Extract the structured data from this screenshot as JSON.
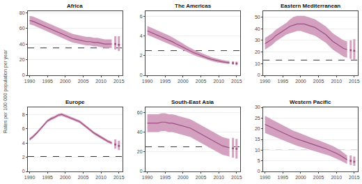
{
  "chart_data": [
    {
      "type": "line",
      "title": "Africa",
      "y_label": "Rates per 100 000 population per year",
      "x": [
        1990,
        1991,
        1992,
        1993,
        1994,
        1995,
        1996,
        1997,
        1998,
        1999,
        2000,
        2001,
        2002,
        2003,
        2004,
        2005,
        2006,
        2007,
        2008,
        2009,
        2010,
        2011,
        2012,
        2013
      ],
      "series": [
        {
          "type": "band",
          "color": "#D4A0C0",
          "lower": [
            65,
            64,
            62,
            60,
            58,
            56,
            54,
            52,
            50,
            48,
            46,
            44,
            42,
            41,
            40,
            39,
            38,
            38,
            37,
            37,
            36,
            35,
            35,
            35
          ],
          "upper": [
            76,
            75,
            73,
            71,
            69,
            67,
            65,
            63,
            61,
            59,
            57,
            55,
            53,
            52,
            51,
            50,
            49,
            49,
            48,
            48,
            47,
            46,
            46,
            46
          ]
        },
        {
          "type": "line",
          "color": "#9B4E7E",
          "values": [
            70,
            69,
            67,
            65,
            63,
            61,
            59,
            57,
            55,
            53,
            51,
            49,
            47,
            46,
            45,
            44,
            43,
            43,
            42,
            42,
            41,
            40,
            40,
            40
          ]
        },
        {
          "type": "range_bar",
          "color": "#D4A0C0",
          "x": [
            2014,
            2015
          ],
          "lower": [
            33,
            31
          ],
          "upper": [
            50,
            50
          ]
        },
        {
          "type": "scatter",
          "color": "#9B4E7E",
          "x": [
            2014,
            2015
          ],
          "values": [
            40,
            39
          ]
        }
      ],
      "reference_line": {
        "value": 35,
        "line_style": "dashed",
        "color": "#333333"
      },
      "xlim": [
        1989.5,
        2016
      ],
      "xticks": [
        1990,
        1995,
        2000,
        2005,
        2010,
        2015
      ],
      "ylim": [
        0,
        82
      ],
      "yticks": [
        0,
        20,
        40,
        60,
        80
      ],
      "grid": true
    },
    {
      "type": "line",
      "title": "The Americas",
      "x": [
        1990,
        1991,
        1992,
        1993,
        1994,
        1995,
        1996,
        1997,
        1998,
        1999,
        2000,
        2001,
        2002,
        2003,
        2004,
        2005,
        2006,
        2007,
        2008,
        2009,
        2010,
        2011,
        2012,
        2013
      ],
      "series": [
        {
          "type": "band",
          "color": "#D4A0C0",
          "lower": [
            4.1,
            3.95,
            3.8,
            3.65,
            3.5,
            3.35,
            3.18,
            3.03,
            2.87,
            2.72,
            2.56,
            2.38,
            2.2,
            2.05,
            1.91,
            1.78,
            1.65,
            1.53,
            1.44,
            1.35,
            1.28,
            1.22,
            1.17,
            1.13
          ],
          "upper": [
            5.0,
            4.85,
            4.7,
            4.55,
            4.4,
            4.25,
            4.05,
            3.85,
            3.65,
            3.48,
            3.22,
            2.98,
            2.76,
            2.6,
            2.44,
            2.28,
            2.12,
            1.97,
            1.84,
            1.73,
            1.63,
            1.55,
            1.49,
            1.44
          ]
        },
        {
          "type": "line",
          "color": "#9B4E7E",
          "values": [
            4.5,
            4.35,
            4.2,
            4.05,
            3.9,
            3.75,
            3.55,
            3.4,
            3.2,
            3.05,
            2.85,
            2.65,
            2.45,
            2.3,
            2.15,
            2.0,
            1.85,
            1.72,
            1.62,
            1.52,
            1.44,
            1.37,
            1.32,
            1.28
          ]
        },
        {
          "type": "range_bar",
          "color": "#D4A0C0",
          "x": [
            2014,
            2015
          ],
          "lower": [
            1.08,
            1.02
          ],
          "upper": [
            1.42,
            1.38
          ]
        },
        {
          "type": "scatter",
          "color": "#9B4E7E",
          "x": [
            2014,
            2015
          ],
          "values": [
            1.24,
            1.2
          ]
        }
      ],
      "reference_line": {
        "value": 2.5,
        "line_style": "dashed",
        "color": "#333333"
      },
      "xlim": [
        1989.5,
        2016
      ],
      "xticks": [
        1990,
        1995,
        2000,
        2005,
        2010,
        2015
      ],
      "ylim": [
        0,
        6.5
      ],
      "yticks": [
        0,
        2,
        4,
        6
      ],
      "grid": true
    },
    {
      "type": "line",
      "title": "Eastern Mediterranean",
      "x": [
        1990,
        1991,
        1992,
        1993,
        1994,
        1995,
        1996,
        1997,
        1998,
        1999,
        2000,
        2001,
        2002,
        2003,
        2004,
        2005,
        2006,
        2007,
        2008,
        2009,
        2010,
        2011,
        2012,
        2013
      ],
      "series": [
        {
          "type": "band",
          "color": "#D4A0C0",
          "lower": [
            22,
            24,
            26,
            29,
            31,
            33,
            35,
            36,
            37,
            38,
            38,
            37,
            36,
            35,
            34,
            32,
            30,
            28,
            25,
            22,
            20,
            18,
            16,
            15
          ],
          "upper": [
            32,
            34,
            36,
            39,
            41,
            43,
            45,
            48,
            50,
            51,
            51,
            51,
            50,
            49,
            48,
            46,
            44,
            42,
            39,
            36,
            34,
            32,
            30,
            29
          ]
        },
        {
          "type": "line",
          "color": "#9B4E7E",
          "values": [
            27,
            29,
            31,
            34,
            36,
            38,
            40,
            42,
            43,
            44,
            44,
            44,
            43,
            42,
            41,
            39,
            37,
            35,
            32,
            29,
            27,
            25,
            23,
            22
          ]
        },
        {
          "type": "range_bar",
          "color": "#D4A0C0",
          "x": [
            2014,
            2015
          ],
          "lower": [
            14,
            13
          ],
          "upper": [
            30,
            31
          ]
        },
        {
          "type": "scatter",
          "color": "#9B4E7E",
          "x": [
            2014,
            2015
          ],
          "values": [
            21.5,
            21.0
          ]
        }
      ],
      "reference_line": {
        "value": 13,
        "line_style": "dashed",
        "color": "#333333"
      },
      "xlim": [
        1989.5,
        2016
      ],
      "xticks": [
        1990,
        1995,
        2000,
        2005,
        2010,
        2015
      ],
      "ylim": [
        0,
        55
      ],
      "yticks": [
        0,
        10,
        20,
        30,
        40,
        50
      ],
      "grid": true
    },
    {
      "type": "line",
      "title": "Europe",
      "x": [
        1990,
        1991,
        1992,
        1993,
        1994,
        1995,
        1996,
        1997,
        1998,
        1999,
        2000,
        2001,
        2002,
        2003,
        2004,
        2005,
        2006,
        2007,
        2008,
        2009,
        2010,
        2011,
        2012,
        2013
      ],
      "series": [
        {
          "type": "band",
          "color": "#D4A0C0",
          "lower": [
            4.3,
            4.7,
            5.2,
            5.8,
            6.4,
            6.9,
            7.2,
            7.4,
            7.7,
            7.8,
            7.6,
            7.4,
            7.2,
            7.0,
            6.8,
            6.4,
            6.0,
            5.6,
            5.2,
            4.9,
            4.6,
            4.3,
            4.0,
            3.8
          ],
          "upper": [
            4.7,
            5.1,
            5.6,
            6.2,
            6.8,
            7.3,
            7.6,
            7.8,
            8.1,
            8.2,
            8.0,
            7.8,
            7.6,
            7.4,
            7.2,
            6.8,
            6.4,
            6.0,
            5.6,
            5.3,
            5.0,
            4.7,
            4.4,
            4.2
          ]
        },
        {
          "type": "line",
          "color": "#9B4E7E",
          "values": [
            4.5,
            4.9,
            5.4,
            6.0,
            6.6,
            7.1,
            7.4,
            7.6,
            7.9,
            8.0,
            7.8,
            7.6,
            7.4,
            7.2,
            7.0,
            6.6,
            6.2,
            5.8,
            5.4,
            5.1,
            4.8,
            4.5,
            4.2,
            4.0
          ]
        },
        {
          "type": "range_bar",
          "color": "#D4A0C0",
          "x": [
            2014,
            2015
          ],
          "lower": [
            3.2,
            3.0
          ],
          "upper": [
            4.5,
            4.3
          ]
        },
        {
          "type": "scatter",
          "color": "#9B4E7E",
          "x": [
            2014,
            2015
          ],
          "values": [
            3.8,
            3.6
          ]
        }
      ],
      "reference_line": {
        "value": 2.1,
        "line_style": "dashed",
        "color": "#333333"
      },
      "xlim": [
        1989.5,
        2016
      ],
      "xticks": [
        1990,
        1995,
        2000,
        2005,
        2010,
        2015
      ],
      "ylim": [
        0,
        9
      ],
      "yticks": [
        0,
        2,
        4,
        6,
        8
      ],
      "grid": true
    },
    {
      "type": "line",
      "title": "South-East Asia",
      "x": [
        1990,
        1991,
        1992,
        1993,
        1994,
        1995,
        1996,
        1997,
        1998,
        1999,
        2000,
        2001,
        2002,
        2003,
        2004,
        2005,
        2006,
        2007,
        2008,
        2009,
        2010,
        2011,
        2012,
        2013
      ],
      "series": [
        {
          "type": "band",
          "color": "#D4A0C0",
          "lower": [
            40,
            40,
            40,
            40,
            41,
            41,
            40,
            40,
            39,
            38,
            37,
            36,
            35,
            33,
            31,
            29,
            27,
            25,
            23,
            21,
            19,
            17,
            16,
            15
          ],
          "upper": [
            58,
            58,
            58,
            58,
            59,
            59,
            58,
            58,
            57,
            56,
            55,
            54,
            53,
            51,
            49,
            47,
            45,
            43,
            41,
            39,
            37,
            35,
            34,
            33
          ]
        },
        {
          "type": "line",
          "color": "#9B4E7E",
          "values": [
            49,
            49,
            49,
            49,
            50,
            50,
            49,
            49,
            48,
            47,
            46,
            45,
            44,
            42,
            40,
            38,
            36,
            34,
            32,
            30,
            28,
            26,
            25,
            24
          ]
        },
        {
          "type": "range_bar",
          "color": "#D4A0C0",
          "x": [
            2014,
            2015
          ],
          "lower": [
            14,
            13
          ],
          "upper": [
            34,
            33
          ]
        },
        {
          "type": "scatter",
          "color": "#9B4E7E",
          "x": [
            2014,
            2015
          ],
          "values": [
            23.5,
            23.0
          ]
        }
      ],
      "reference_line": {
        "value": 25,
        "line_style": "dashed",
        "color": "#333333"
      },
      "xlim": [
        1989.5,
        2016
      ],
      "xticks": [
        1990,
        1995,
        2000,
        2005,
        2010,
        2015
      ],
      "ylim": [
        0,
        65
      ],
      "yticks": [
        0,
        20,
        40,
        60
      ],
      "grid": true
    },
    {
      "type": "line",
      "title": "Western Pacific",
      "x": [
        1990,
        1991,
        1992,
        1993,
        1994,
        1995,
        1996,
        1997,
        1998,
        1999,
        2000,
        2001,
        2002,
        2003,
        2004,
        2005,
        2006,
        2007,
        2008,
        2009,
        2010,
        2011,
        2012,
        2013
      ],
      "series": [
        {
          "type": "band",
          "color": "#D4A0C0",
          "lower": [
            18,
            17.3,
            16.6,
            15.9,
            15.2,
            14.5,
            13.8,
            13.2,
            12.6,
            12.0,
            11.5,
            11.0,
            10.5,
            10.0,
            9.5,
            9.0,
            8.5,
            8.0,
            7.4,
            6.7,
            6.0,
            5.2,
            4.3,
            3.5
          ],
          "upper": [
            26,
            25.1,
            24.2,
            23.3,
            22.4,
            21.5,
            20.6,
            19.8,
            19.0,
            18.4,
            17.7,
            17.0,
            16.3,
            15.8,
            15.1,
            14.6,
            13.9,
            13.4,
            12.6,
            11.9,
            11.0,
            10.0,
            8.7,
            7.5
          ]
        },
        {
          "type": "line",
          "color": "#9B4E7E",
          "values": [
            22,
            21.2,
            20.4,
            19.6,
            18.8,
            18.0,
            17.2,
            16.5,
            15.8,
            15.2,
            14.6,
            14.0,
            13.4,
            12.9,
            12.3,
            11.8,
            11.2,
            10.7,
            10.0,
            9.3,
            8.5,
            7.6,
            6.5,
            5.5
          ]
        },
        {
          "type": "range_bar",
          "color": "#D4A0C0",
          "x": [
            2014,
            2015
          ],
          "lower": [
            3.0,
            2.6
          ],
          "upper": [
            7.5,
            7.0
          ]
        },
        {
          "type": "scatter",
          "color": "#9B4E7E",
          "x": [
            2014,
            2015
          ],
          "values": [
            5.0,
            4.6
          ]
        }
      ],
      "reference_line": {
        "value": 10,
        "line_style": "dashed",
        "color": "#333333"
      },
      "xlim": [
        1989.5,
        2016
      ],
      "xticks": [
        1990,
        1995,
        2000,
        2005,
        2010,
        2015
      ],
      "ylim": [
        0,
        30
      ],
      "yticks": [
        0,
        5,
        10,
        15,
        20,
        25,
        30
      ],
      "grid": true
    }
  ]
}
